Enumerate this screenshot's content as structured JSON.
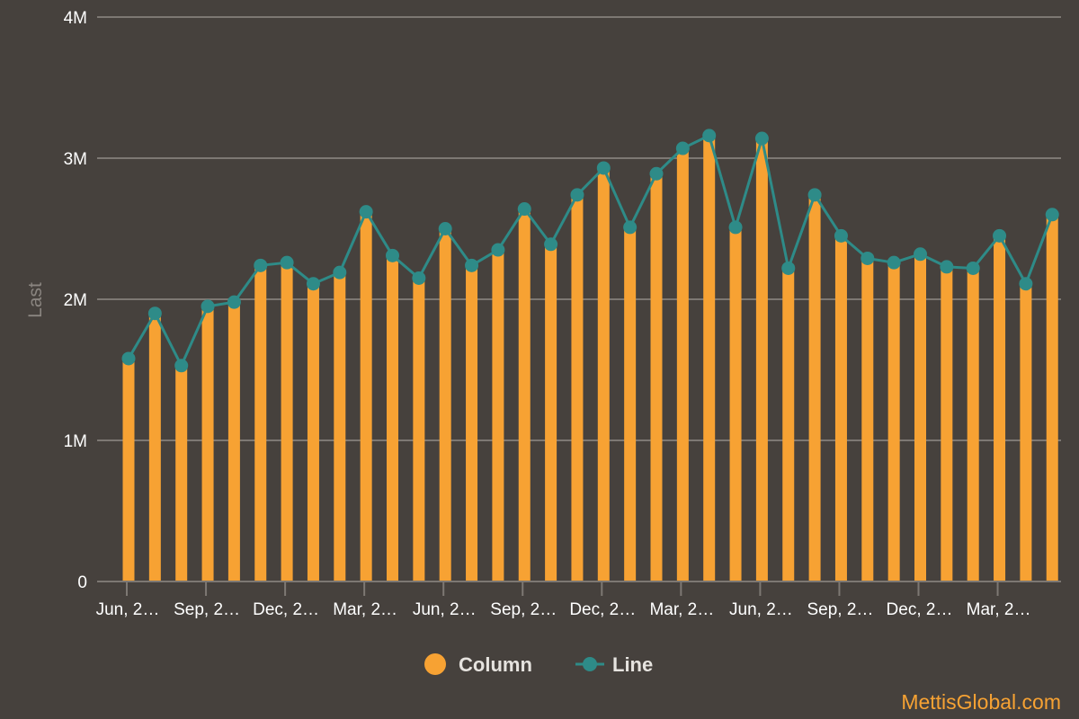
{
  "colors": {
    "background": "#46413d",
    "column": "#f7a233",
    "line": "#2e8b88",
    "gridline": "#7d7873",
    "tick_text": "#ffffff",
    "axis_title": "#8a8580",
    "legend_text": "#e6e3df",
    "credit": "#f7a233"
  },
  "credit": "MettisGlobal.com",
  "chart_data": {
    "type": "bar",
    "ylabel": "Last",
    "ylim": [
      0,
      4000000
    ],
    "y_ticks": [
      {
        "value": 0,
        "label": "0"
      },
      {
        "value": 1000000,
        "label": "1M"
      },
      {
        "value": 2000000,
        "label": "2M"
      },
      {
        "value": 3000000,
        "label": "3M"
      },
      {
        "value": 4000000,
        "label": "4M"
      }
    ],
    "x_tick_labels": [
      {
        "index": 0,
        "label": "Jun, 2…"
      },
      {
        "index": 3,
        "label": "Sep, 2…"
      },
      {
        "index": 6,
        "label": "Dec, 2…"
      },
      {
        "index": 9,
        "label": "Mar, 2…"
      },
      {
        "index": 12,
        "label": "Jun, 2…"
      },
      {
        "index": 15,
        "label": "Sep, 2…"
      },
      {
        "index": 18,
        "label": "Dec, 2…"
      },
      {
        "index": 21,
        "label": "Mar, 2…"
      },
      {
        "index": 24,
        "label": "Jun, 2…"
      },
      {
        "index": 27,
        "label": "Sep, 2…"
      },
      {
        "index": 30,
        "label": "Dec, 2…"
      },
      {
        "index": 33,
        "label": "Mar, 2…"
      }
    ],
    "legend": {
      "placement": "bottom-center",
      "items": [
        {
          "name": "Column",
          "symbol": "circle",
          "color": "#f7a233"
        },
        {
          "name": "Line",
          "symbol": "line-marker",
          "color": "#2e8b88"
        }
      ]
    },
    "grid": true,
    "series": [
      {
        "name": "Column",
        "type": "bar",
        "values": [
          1580000,
          1900000,
          1530000,
          1950000,
          1980000,
          2240000,
          2260000,
          2110000,
          2190000,
          2620000,
          2310000,
          2150000,
          2500000,
          2240000,
          2350000,
          2640000,
          2390000,
          2740000,
          2930000,
          2510000,
          2890000,
          3070000,
          3160000,
          2510000,
          3140000,
          2220000,
          2740000,
          2450000,
          2290000,
          2260000,
          2320000,
          2230000,
          2220000,
          2450000,
          2110000,
          2600000
        ]
      },
      {
        "name": "Line",
        "type": "line",
        "values": [
          1580000,
          1900000,
          1530000,
          1950000,
          1980000,
          2240000,
          2260000,
          2110000,
          2190000,
          2620000,
          2310000,
          2150000,
          2500000,
          2240000,
          2350000,
          2640000,
          2390000,
          2740000,
          2930000,
          2510000,
          2890000,
          3070000,
          3160000,
          2510000,
          3140000,
          2220000,
          2740000,
          2450000,
          2290000,
          2260000,
          2320000,
          2230000,
          2220000,
          2450000,
          2110000,
          2600000
        ]
      }
    ]
  }
}
